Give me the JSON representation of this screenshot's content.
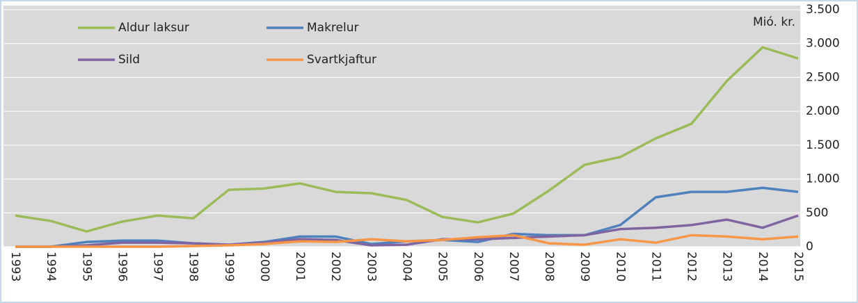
{
  "chart_data": {
    "type": "line",
    "annotation": "Mió. kr.",
    "categories": [
      "1993",
      "1994",
      "1995",
      "1996",
      "1997",
      "1998",
      "1999",
      "2000",
      "2001",
      "2002",
      "2003",
      "2004",
      "2005",
      "2006",
      "2007",
      "2008",
      "2009",
      "2010",
      "2011",
      "2012",
      "2013",
      "2014",
      "2015"
    ],
    "series": [
      {
        "name": "Aldur laksur",
        "color": "#9bbb59",
        "values": [
          460,
          380,
          225,
          370,
          460,
          420,
          840,
          860,
          935,
          810,
          790,
          690,
          440,
          360,
          490,
          830,
          1210,
          1325,
          1600,
          1815,
          2450,
          2945,
          2780
        ]
      },
      {
        "name": "Makrelur",
        "color": "#4f81bd",
        "values": [
          0,
          0,
          70,
          90,
          90,
          50,
          30,
          70,
          150,
          150,
          40,
          80,
          100,
          70,
          190,
          170,
          170,
          320,
          730,
          810,
          810,
          870,
          810
        ]
      },
      {
        "name": "Sild",
        "color": "#8064a2",
        "values": [
          0,
          0,
          20,
          60,
          60,
          50,
          30,
          60,
          110,
          100,
          20,
          30,
          110,
          110,
          130,
          150,
          170,
          260,
          280,
          320,
          400,
          280,
          460
        ]
      },
      {
        "name": "Svartkjaftur",
        "color": "#f79646",
        "values": [
          0,
          0,
          0,
          0,
          0,
          10,
          20,
          40,
          80,
          70,
          110,
          80,
          100,
          140,
          170,
          50,
          30,
          110,
          60,
          170,
          150,
          110,
          150
        ]
      }
    ],
    "ylim": [
      0,
      3500
    ],
    "yticks": [
      0,
      500,
      {
        "value": 1000,
        "label": "1.000"
      },
      {
        "value": 1500,
        "label": "1.500"
      },
      {
        "value": 2000,
        "label": "2.000"
      },
      {
        "value": 2500,
        "label": "2.500"
      },
      {
        "value": 3000,
        "label": "3.000"
      },
      {
        "value": 3500,
        "label": "3.500"
      }
    ],
    "grid": true
  }
}
